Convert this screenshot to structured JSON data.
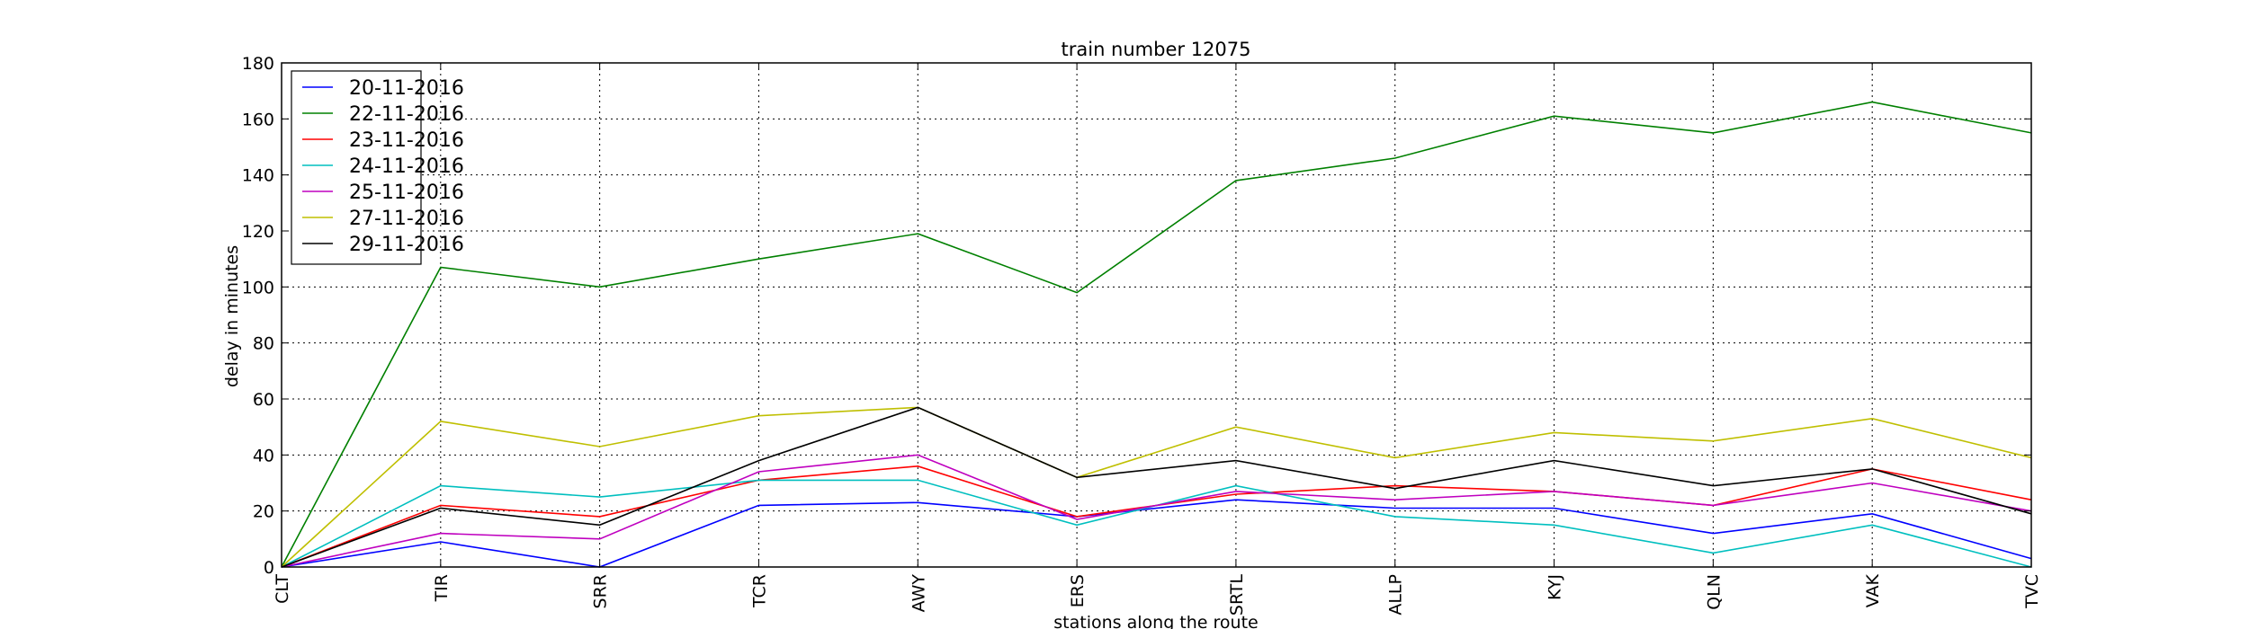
{
  "chart_data": {
    "type": "line",
    "title": "train number 12075",
    "xlabel": "stations along the route",
    "ylabel": "delay in minutes",
    "categories": [
      "CLT",
      "TIR",
      "SRR",
      "TCR",
      "AWY",
      "ERS",
      "SRTL",
      "ALLP",
      "KYJ",
      "QLN",
      "VAK",
      "TVC"
    ],
    "ylim": [
      0,
      180
    ],
    "yticks": [
      0,
      20,
      40,
      60,
      80,
      100,
      120,
      140,
      160,
      180
    ],
    "grid": true,
    "legend_position": "top-left",
    "series": [
      {
        "name": "20-11-2016",
        "color": "#0000ff",
        "values": [
          0,
          9,
          0,
          22,
          23,
          18,
          24,
          21,
          21,
          12,
          19,
          3
        ]
      },
      {
        "name": "22-11-2016",
        "color": "#008000",
        "values": [
          0,
          107,
          100,
          110,
          119,
          98,
          138,
          146,
          161,
          155,
          166,
          155
        ]
      },
      {
        "name": "23-11-2016",
        "color": "#ff0000",
        "values": [
          0,
          22,
          18,
          31,
          36,
          18,
          26,
          29,
          27,
          22,
          35,
          24
        ]
      },
      {
        "name": "24-11-2016",
        "color": "#00bfbf",
        "values": [
          0,
          29,
          25,
          31,
          31,
          15,
          29,
          18,
          15,
          5,
          15,
          0
        ]
      },
      {
        "name": "25-11-2016",
        "color": "#bf00bf",
        "values": [
          0,
          12,
          10,
          34,
          40,
          17,
          27,
          24,
          27,
          22,
          30,
          20
        ]
      },
      {
        "name": "27-11-2016",
        "color": "#bfbf00",
        "values": [
          0,
          52,
          43,
          54,
          57,
          32,
          50,
          39,
          48,
          45,
          53,
          39
        ]
      },
      {
        "name": "29-11-2016",
        "color": "#000000",
        "values": [
          0,
          21,
          15,
          38,
          57,
          32,
          38,
          28,
          38,
          29,
          35,
          19
        ]
      }
    ]
  }
}
